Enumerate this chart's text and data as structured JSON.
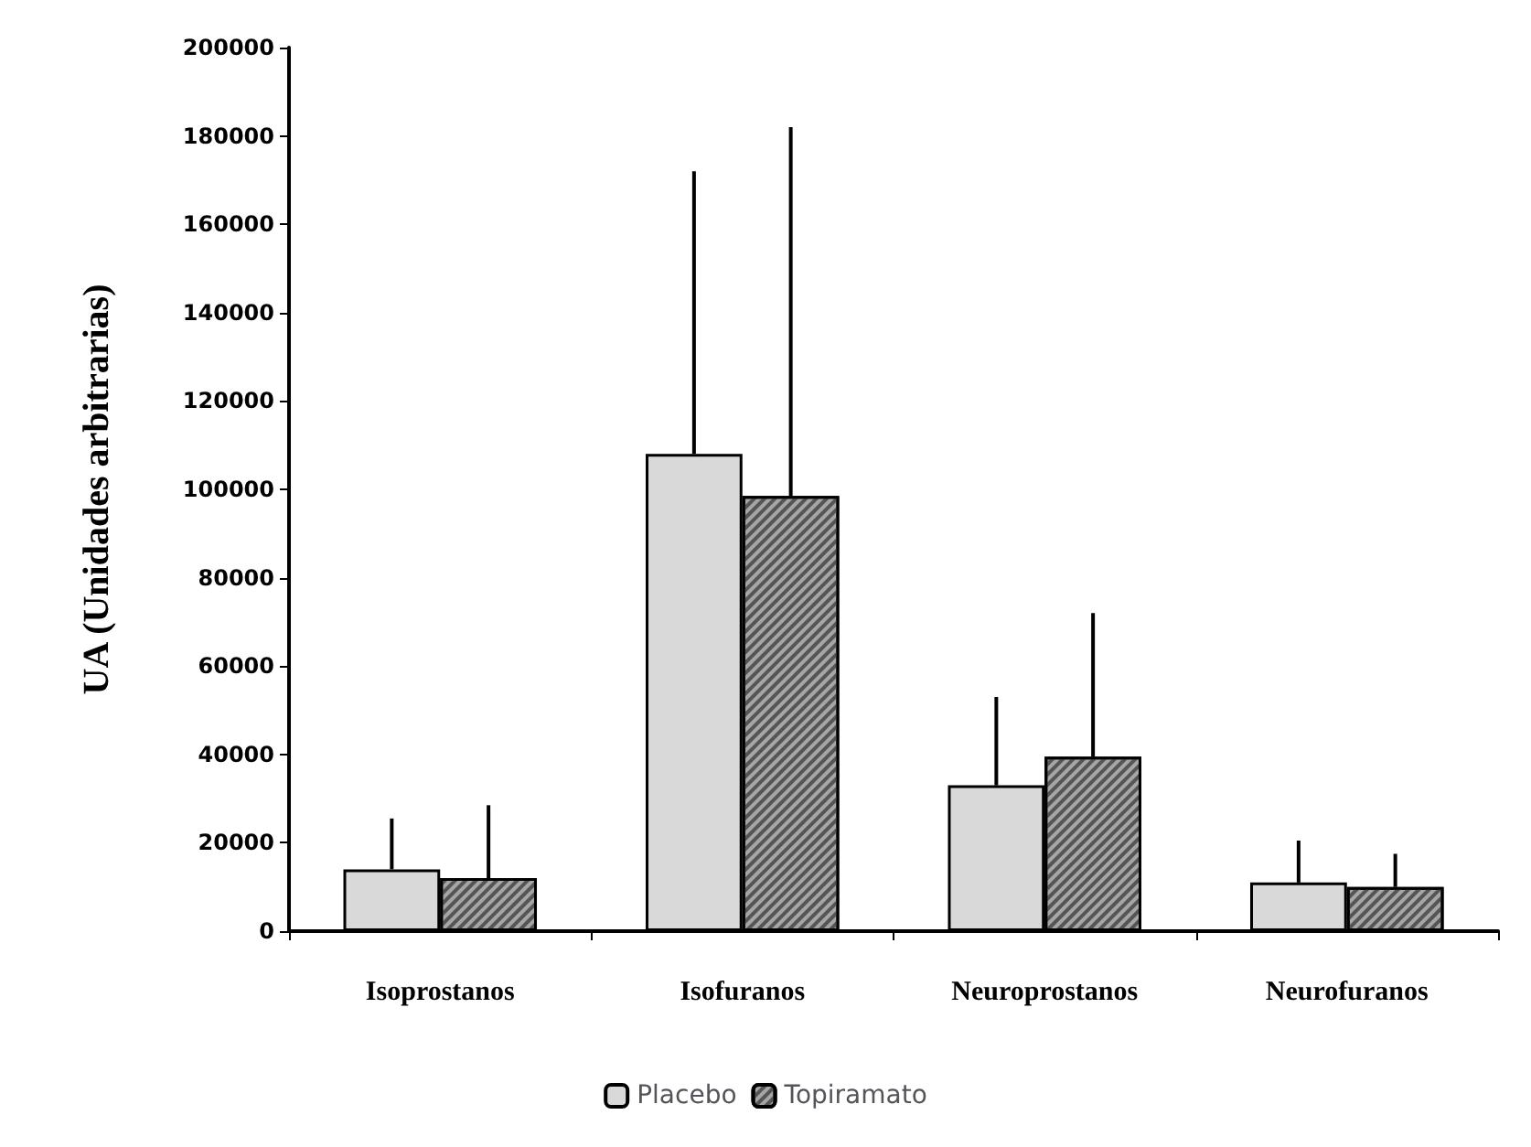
{
  "chart_data": {
    "type": "bar",
    "ylabel": "UA (Unidades arbitrarias)",
    "categories": [
      "Isoprostanos",
      "Isofuranos",
      "Neuroprostanos",
      "Neurofuranos"
    ],
    "series": [
      {
        "name": "Placebo",
        "color": "#d9d9d9",
        "values": [
          14000,
          108000,
          33000,
          11000
        ],
        "errors": [
          [
            14000,
            25500
          ],
          [
            108000,
            172000
          ],
          [
            33000,
            53000
          ],
          [
            11000,
            20500
          ]
        ]
      },
      {
        "name": "Topiramato",
        "color": "#a6a6a6",
        "values": [
          12000,
          98500,
          39500,
          10000
        ],
        "errors": [
          [
            12000,
            28500
          ],
          [
            98500,
            182000
          ],
          [
            39500,
            72000
          ],
          [
            10000,
            17500
          ]
        ]
      }
    ],
    "ylim": [
      0,
      200000
    ],
    "yticks": [
      0,
      20000,
      40000,
      60000,
      80000,
      100000,
      120000,
      140000,
      160000,
      180000,
      200000
    ],
    "grid": false,
    "legend": "bottom"
  }
}
